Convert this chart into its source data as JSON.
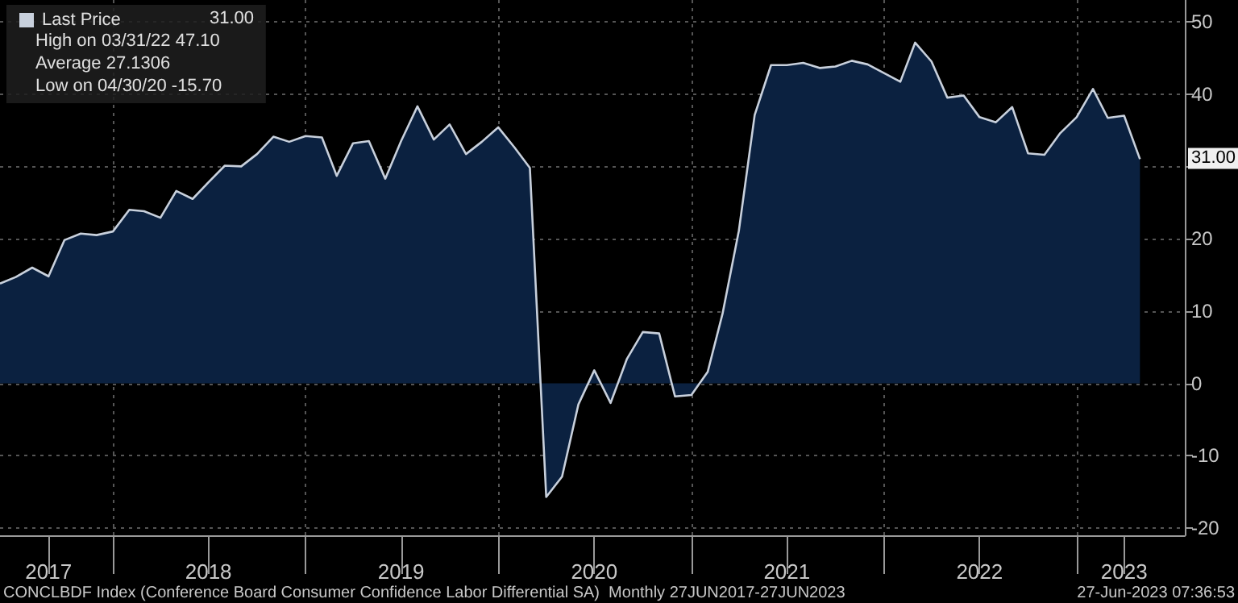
{
  "chart_data": {
    "type": "area",
    "x": [
      "2017-06",
      "2017-07",
      "2017-08",
      "2017-09",
      "2017-10",
      "2017-11",
      "2017-12",
      "2018-01",
      "2018-02",
      "2018-03",
      "2018-04",
      "2018-05",
      "2018-06",
      "2018-07",
      "2018-08",
      "2018-09",
      "2018-10",
      "2018-11",
      "2018-12",
      "2019-01",
      "2019-02",
      "2019-03",
      "2019-04",
      "2019-05",
      "2019-06",
      "2019-07",
      "2019-08",
      "2019-09",
      "2019-10",
      "2019-11",
      "2019-12",
      "2020-01",
      "2020-02",
      "2020-03",
      "2020-04",
      "2020-05",
      "2020-06",
      "2020-07",
      "2020-08",
      "2020-09",
      "2020-10",
      "2020-11",
      "2020-12",
      "2021-01",
      "2021-02",
      "2021-03",
      "2021-04",
      "2021-05",
      "2021-06",
      "2021-07",
      "2021-08",
      "2021-09",
      "2021-10",
      "2021-11",
      "2021-12",
      "2022-01",
      "2022-02",
      "2022-03",
      "2022-04",
      "2022-05",
      "2022-06",
      "2022-07",
      "2022-08",
      "2022-09",
      "2022-10",
      "2022-11",
      "2022-12",
      "2023-01",
      "2023-02",
      "2023-03",
      "2023-04",
      "2023-05"
    ],
    "series": [
      {
        "name": "Last Price",
        "color": "#c8d0dc",
        "values": [
          13.8,
          14.7,
          16.0,
          14.8,
          19.8,
          20.7,
          20.5,
          21.0,
          24.0,
          23.8,
          22.9,
          26.6,
          25.5,
          27.8,
          30.1,
          30.0,
          31.7,
          34.1,
          33.4,
          34.2,
          34.0,
          28.7,
          33.2,
          33.5,
          28.3,
          33.5,
          38.3,
          33.7,
          35.8,
          31.7,
          33.4,
          35.4,
          32.6,
          29.8,
          -15.7,
          -12.9,
          -2.9,
          1.8,
          -2.7,
          3.4,
          7.1,
          6.9,
          -1.8,
          -1.6,
          1.6,
          9.6,
          21.1,
          37.1,
          44.0,
          44.0,
          44.3,
          43.6,
          43.8,
          44.6,
          44.1,
          42.9,
          41.7,
          47.1,
          44.5,
          39.5,
          39.8,
          36.8,
          36.1,
          38.2,
          31.8,
          31.6,
          34.6,
          36.8,
          40.7,
          36.7,
          37.0,
          31.0
        ]
      }
    ],
    "xlim": [
      "2017-06",
      "2023-07-25"
    ],
    "xticks": [
      {
        "value": "2017-09",
        "label": "2017"
      },
      {
        "value": "2018-01",
        "label": null
      },
      {
        "value": "2018-07",
        "label": "2018"
      },
      {
        "value": "2019-01",
        "label": null
      },
      {
        "value": "2019-07",
        "label": "2019"
      },
      {
        "value": "2020-01",
        "label": null
      },
      {
        "value": "2020-07",
        "label": "2020"
      },
      {
        "value": "2021-01",
        "label": null
      },
      {
        "value": "2021-07",
        "label": "2021"
      },
      {
        "value": "2022-01",
        "label": null
      },
      {
        "value": "2022-07",
        "label": "2022"
      },
      {
        "value": "2023-01",
        "label": null
      },
      {
        "value": "2023-04",
        "label": "2023"
      }
    ],
    "ylim": [
      -21,
      53
    ],
    "yticks": [
      -20,
      -10,
      0,
      10,
      20,
      {
        "value": 30,
        "label": null
      },
      40,
      50
    ],
    "grid": true,
    "legend": "top left",
    "annotations": [
      "31.00",
      "High on 03/31/22 47.10",
      "Average 27.1306",
      "Low on 04/30/20 -15.70",
      {
        "text": "31.00",
        "x": "2023-05",
        "y": 31.0
      },
      "CONCLBDF Index (Conference Board Consumer Confidence Labor Differential SA)  Monthly 27JUN2017-27JUN2023",
      "27-Jun-2023 07:36:53"
    ]
  }
}
